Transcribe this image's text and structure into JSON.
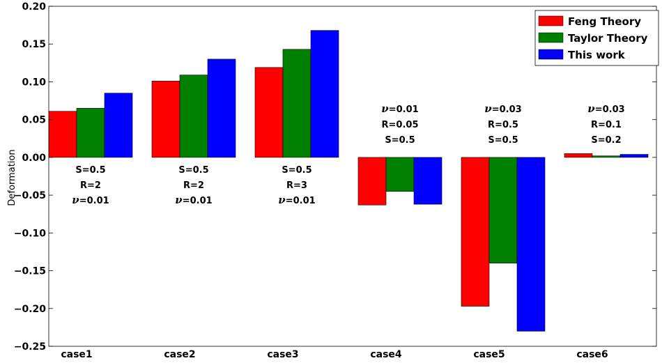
{
  "chart_data": {
    "type": "bar",
    "ylabel": "Deformation",
    "ylim": [
      -0.25,
      0.2
    ],
    "yticks": [
      "0.20",
      "0.15",
      "0.10",
      "0.05",
      "0.00",
      "−0.05",
      "−0.10",
      "−0.15",
      "−0.20",
      "−0.25"
    ],
    "ytick_values": [
      0.2,
      0.15,
      0.1,
      0.05,
      0.0,
      -0.05,
      -0.1,
      -0.15,
      -0.2,
      -0.25
    ],
    "categories": [
      "case1",
      "case2",
      "case3",
      "case4",
      "case5",
      "case6"
    ],
    "series": [
      {
        "name": "Feng Theory",
        "color": "#ff0000",
        "values": [
          0.061,
          0.101,
          0.119,
          -0.063,
          -0.197,
          0.005
        ]
      },
      {
        "name": "Taylor Theory",
        "color": "#008000",
        "values": [
          0.065,
          0.109,
          0.143,
          -0.045,
          -0.14,
          0.002
        ]
      },
      {
        "name": "This work",
        "color": "#0000ff",
        "values": [
          0.085,
          0.13,
          0.168,
          -0.062,
          -0.23,
          0.004
        ]
      }
    ],
    "legend": {
      "position": "top-right"
    },
    "annotations": [
      {
        "category": "case1",
        "placement": "below",
        "lines": [
          {
            "label": "S",
            "value": "=0.5"
          },
          {
            "label": "R",
            "value": "=2"
          },
          {
            "label": "ν",
            "value": "=0.01"
          }
        ]
      },
      {
        "category": "case2",
        "placement": "below",
        "lines": [
          {
            "label": "S",
            "value": "=0.5"
          },
          {
            "label": "R",
            "value": "=2"
          },
          {
            "label": "ν",
            "value": "=0.01"
          }
        ]
      },
      {
        "category": "case3",
        "placement": "below",
        "lines": [
          {
            "label": "S",
            "value": "=0.5"
          },
          {
            "label": "R",
            "value": "=3"
          },
          {
            "label": "ν",
            "value": "=0.01"
          }
        ]
      },
      {
        "category": "case4",
        "placement": "above",
        "lines": [
          {
            "label": "ν",
            "value": "=0.01"
          },
          {
            "label": "R",
            "value": "=0.05"
          },
          {
            "label": "S",
            "value": "=0.5"
          }
        ]
      },
      {
        "category": "case5",
        "placement": "above",
        "lines": [
          {
            "label": "ν",
            "value": "=0.03"
          },
          {
            "label": "R",
            "value": "=0.5"
          },
          {
            "label": "S",
            "value": "=0.5"
          }
        ]
      },
      {
        "category": "case6",
        "placement": "above",
        "lines": [
          {
            "label": "ν",
            "value": "=0.03"
          },
          {
            "label": "R",
            "value": "=0.1"
          },
          {
            "label": "S",
            "value": "=0.2"
          }
        ]
      }
    ]
  }
}
